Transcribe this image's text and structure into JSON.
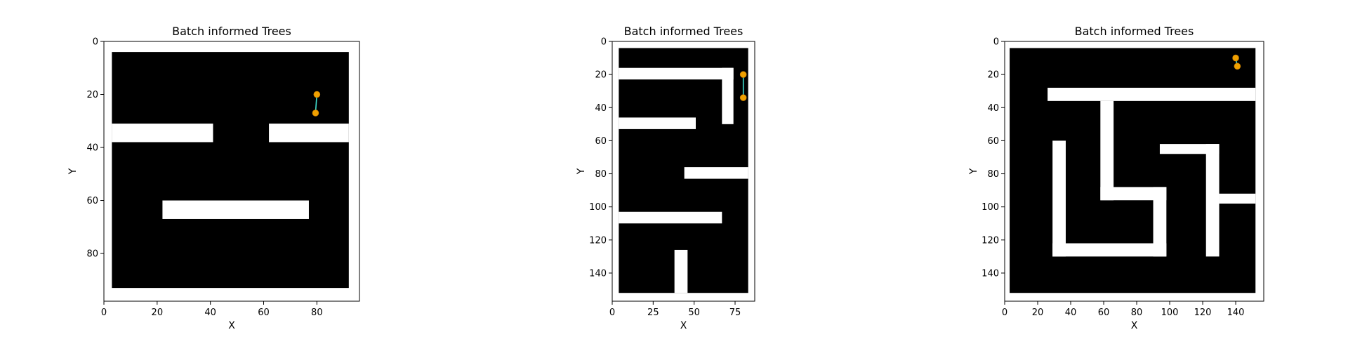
{
  "chart_data": [
    {
      "type": "occupancy-map",
      "title": "Batch informed Trees",
      "xlabel": "X",
      "ylabel": "Y",
      "xlim": [
        0,
        96
      ],
      "ylim": [
        98,
        0
      ],
      "xticks": [
        0,
        20,
        40,
        60,
        80
      ],
      "yticks": [
        0,
        20,
        40,
        60,
        80
      ],
      "colors": {
        "obstacle": "#000000",
        "free": "#ffffff",
        "path": "#40e0d0",
        "node": "#f0a000"
      },
      "free_rects": [
        [
          0,
          0,
          96,
          4
        ],
        [
          0,
          93,
          96,
          98
        ],
        [
          0,
          0,
          3,
          98
        ],
        [
          92,
          0,
          96,
          98
        ],
        [
          3,
          31,
          41,
          38
        ],
        [
          62,
          31,
          92,
          38
        ],
        [
          22,
          60,
          77,
          67
        ]
      ],
      "path": [
        [
          80,
          20
        ],
        [
          79.5,
          27
        ]
      ]
    },
    {
      "type": "occupancy-map",
      "title": "Batch informed Trees",
      "xlabel": "X",
      "ylabel": "Y",
      "xlim": [
        0,
        87
      ],
      "ylim": [
        157,
        0
      ],
      "xticks": [
        0,
        25,
        50,
        75
      ],
      "yticks": [
        0,
        20,
        40,
        60,
        80,
        100,
        120,
        140
      ],
      "colors": {
        "obstacle": "#000000",
        "free": "#ffffff",
        "path": "#40e0d0",
        "node": "#f0a000"
      },
      "free_rects": [
        [
          0,
          0,
          87,
          4
        ],
        [
          0,
          152,
          87,
          157
        ],
        [
          0,
          0,
          4,
          157
        ],
        [
          83,
          0,
          87,
          157
        ],
        [
          4,
          16,
          74,
          23
        ],
        [
          67,
          16,
          74,
          50
        ],
        [
          4,
          46,
          51,
          53
        ],
        [
          44,
          76,
          83,
          83
        ],
        [
          4,
          103,
          67,
          110
        ],
        [
          38,
          126,
          46,
          152
        ]
      ],
      "path": [
        [
          80,
          20
        ],
        [
          80,
          34
        ]
      ]
    },
    {
      "type": "occupancy-map",
      "title": "Batch informed Trees",
      "xlabel": "X",
      "ylabel": "Y",
      "xlim": [
        0,
        157
      ],
      "ylim": [
        157,
        0
      ],
      "xticks": [
        0,
        20,
        40,
        60,
        80,
        100,
        120,
        140
      ],
      "yticks": [
        0,
        20,
        40,
        60,
        80,
        100,
        120,
        140
      ],
      "colors": {
        "obstacle": "#000000",
        "free": "#ffffff",
        "path": "#40e0d0",
        "node": "#f0a000"
      },
      "free_rects": [
        [
          0,
          0,
          157,
          4
        ],
        [
          0,
          152,
          157,
          157
        ],
        [
          0,
          0,
          3,
          157
        ],
        [
          152,
          0,
          157,
          157
        ],
        [
          26,
          28,
          152,
          36
        ],
        [
          58,
          36,
          66,
          96
        ],
        [
          58,
          88,
          98,
          96
        ],
        [
          90,
          88,
          98,
          130
        ],
        [
          29,
          60,
          37,
          130
        ],
        [
          29,
          122,
          98,
          130
        ],
        [
          94,
          62,
          130,
          68
        ],
        [
          122,
          62,
          130,
          130
        ],
        [
          130,
          92,
          152,
          98
        ]
      ],
      "path": [
        [
          140,
          10
        ],
        [
          141,
          15
        ]
      ]
    }
  ]
}
